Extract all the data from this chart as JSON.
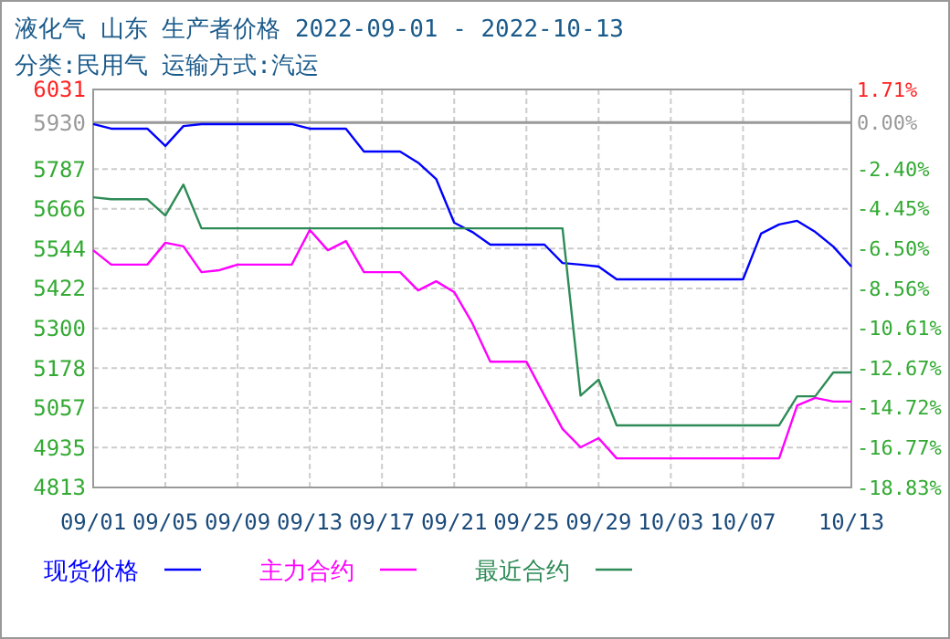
{
  "chart_data": {
    "type": "line",
    "title": "液化气 山东 生产者价格 2022-09-01 - 2022-10-13",
    "subtitle": "分类:民用气 运输方式:汽运",
    "x": [
      "2022-09-01",
      "2022-09-02",
      "2022-09-03",
      "2022-09-04",
      "2022-09-05",
      "2022-09-06",
      "2022-09-07",
      "2022-09-08",
      "2022-09-09",
      "2022-09-10",
      "2022-09-11",
      "2022-09-12",
      "2022-09-13",
      "2022-09-14",
      "2022-09-15",
      "2022-09-16",
      "2022-09-17",
      "2022-09-18",
      "2022-09-19",
      "2022-09-20",
      "2022-09-21",
      "2022-09-22",
      "2022-09-23",
      "2022-09-24",
      "2022-09-25",
      "2022-09-26",
      "2022-09-27",
      "2022-09-28",
      "2022-09-29",
      "2022-09-30",
      "2022-10-01",
      "2022-10-02",
      "2022-10-03",
      "2022-10-04",
      "2022-10-05",
      "2022-10-06",
      "2022-10-07",
      "2022-10-08",
      "2022-10-09",
      "2022-10-10",
      "2022-10-11",
      "2022-10-12",
      "2022-10-13"
    ],
    "series": [
      {
        "name": "现货价格",
        "color": "#0000ff",
        "values": [
          5925,
          5911,
          5911,
          5911,
          5858,
          5919,
          5925,
          5925,
          5925,
          5925,
          5925,
          5925,
          5911,
          5911,
          5911,
          5841,
          5841,
          5841,
          5807,
          5757,
          5623,
          5595,
          5556,
          5556,
          5556,
          5556,
          5500,
          5495,
          5489,
          5450,
          5450,
          5450,
          5450,
          5450,
          5450,
          5450,
          5450,
          5590,
          5618,
          5629,
          5595,
          5550,
          5489
        ]
      },
      {
        "name": "主力合约",
        "color": "#ff00ff",
        "values": [
          5539,
          5495,
          5495,
          5495,
          5562,
          5551,
          5472,
          5478,
          5495,
          5495,
          5495,
          5495,
          5601,
          5539,
          5567,
          5472,
          5472,
          5472,
          5416,
          5444,
          5411,
          5316,
          5198,
          5198,
          5198,
          5094,
          4992,
          4936,
          4964,
          4902,
          4902,
          4902,
          4902,
          4902,
          4902,
          4902,
          4902,
          4902,
          4902,
          5064,
          5087,
          5076,
          5076
        ]
      },
      {
        "name": "最近合约",
        "color": "#2e8b57",
        "values": [
          5701,
          5695,
          5695,
          5695,
          5645,
          5740,
          5606,
          5606,
          5606,
          5606,
          5606,
          5606,
          5606,
          5606,
          5606,
          5606,
          5606,
          5606,
          5606,
          5606,
          5606,
          5606,
          5606,
          5606,
          5606,
          5606,
          5606,
          5094,
          5143,
          5003,
          5003,
          5003,
          5003,
          5003,
          5003,
          5003,
          5003,
          5003,
          5003,
          5092,
          5092,
          5165,
          5165
        ]
      }
    ],
    "xlim": [
      "2022-09-01",
      "2022-10-13"
    ],
    "xticks": [
      {
        "value": "2022-09-01",
        "label": "09/01"
      },
      {
        "value": "2022-09-05",
        "label": "09/05"
      },
      {
        "value": "2022-09-09",
        "label": "09/09"
      },
      {
        "value": "2022-09-13",
        "label": "09/13"
      },
      {
        "value": "2022-09-17",
        "label": "09/17"
      },
      {
        "value": "2022-09-21",
        "label": "09/21"
      },
      {
        "value": "2022-09-25",
        "label": "09/25"
      },
      {
        "value": "2022-09-29",
        "label": "09/29"
      },
      {
        "value": "2022-10-03",
        "label": "10/03"
      },
      {
        "value": "2022-10-07",
        "label": "10/07"
      },
      {
        "value": "2022-10-13",
        "label": "10/13"
      }
    ],
    "ylim": [
      4813,
      6031
    ],
    "yticks": [
      4813,
      4935,
      5057,
      5178,
      5300,
      5422,
      5544,
      5666,
      5787,
      5930,
      6031
    ],
    "y2lim": [
      -18.83,
      1.71
    ],
    "y2ticks": [
      {
        "value": -18.83,
        "label": "-18.83%"
      },
      {
        "value": -16.77,
        "label": "-16.77%"
      },
      {
        "value": -14.72,
        "label": "-14.72%"
      },
      {
        "value": -12.67,
        "label": "-12.67%"
      },
      {
        "value": -10.61,
        "label": "-10.61%"
      },
      {
        "value": -8.56,
        "label": "-8.56%"
      },
      {
        "value": -6.5,
        "label": "-6.50%"
      },
      {
        "value": -4.45,
        "label": "-4.45%"
      },
      {
        "value": -2.4,
        "label": "-2.40%"
      },
      {
        "value": 0,
        "label": "0.00%"
      },
      {
        "value": 1.71,
        "label": "1.71%"
      }
    ],
    "ref_lines": [
      {
        "axis": "y2",
        "value": 0,
        "color": "#999999"
      }
    ],
    "grid": true,
    "legend": "bottom",
    "marker": "none",
    "line_style": "solid"
  }
}
